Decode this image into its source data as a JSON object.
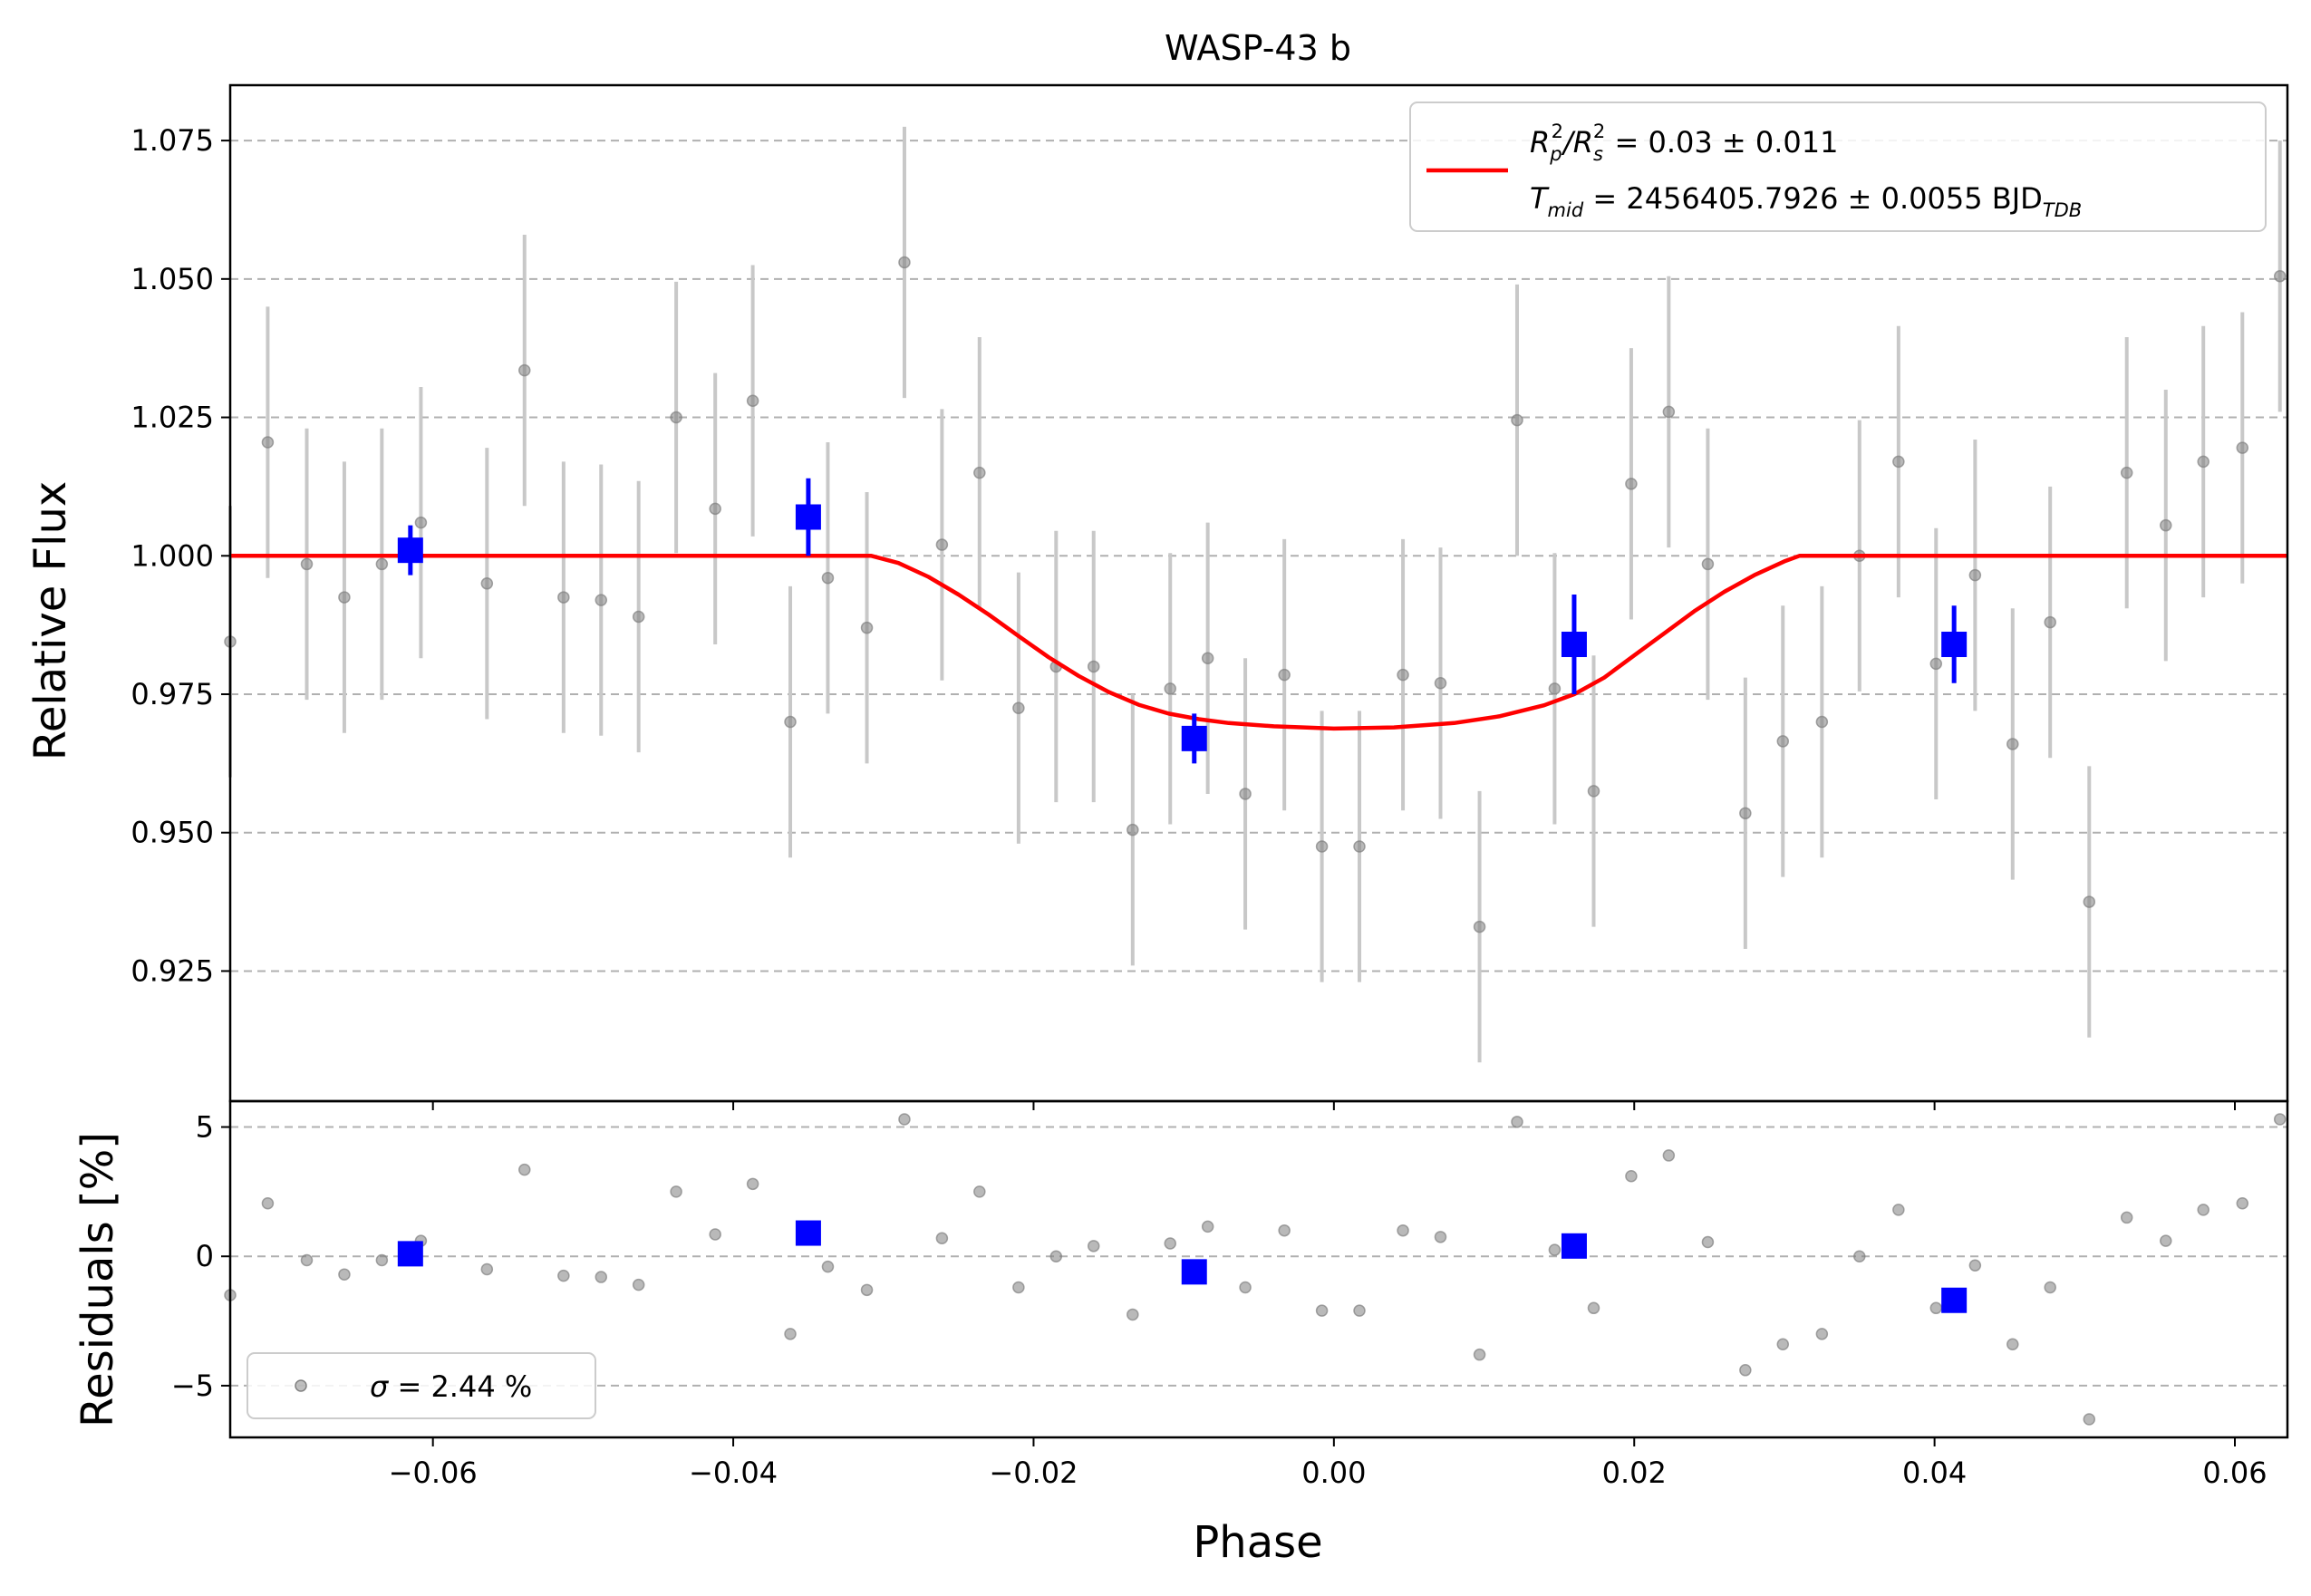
{
  "chart_data": [
    {
      "panel": "main",
      "type": "scatter",
      "title": "WASP-43 b",
      "xlabel": "",
      "ylabel": "Relative Flux",
      "xlim": [
        -0.0735,
        0.0635
      ],
      "ylim": [
        0.9015,
        1.085
      ],
      "x_ticks": [
        -0.06,
        -0.04,
        -0.02,
        0.0,
        0.02,
        0.04,
        0.06
      ],
      "x_tick_labels": [
        "−0.06",
        "−0.04",
        "−0.02",
        "0.00",
        "0.02",
        "0.04",
        "0.06"
      ],
      "y_ticks": [
        0.925,
        0.95,
        0.975,
        1.0,
        1.025,
        1.05,
        1.075
      ],
      "y_tick_labels": [
        "0.925",
        "0.950",
        "0.975",
        "1.000",
        "1.025",
        "1.050",
        "1.075"
      ],
      "grid": "horizontal dashed",
      "legend_position": "top-right",
      "colors": {
        "data": "#808080",
        "error": "#c8c8c8",
        "binned": "#0000ff",
        "model": "#ff0000"
      },
      "legend": {
        "line1": {
          "main": "R",
          "sub1": "p",
          "sup1": "2",
          "slash": "/R",
          "sub2": "s",
          "sup2": "2",
          "rest": " = 0.03 ± 0.011"
        },
        "line2": {
          "main": "T",
          "sub": "mid",
          "rest": " = 2456405.7926 ± 0.0055 BJD",
          "tail": "TDB"
        }
      },
      "series": [
        {
          "role": "data",
          "points": [
            {
              "x": -0.0735,
              "y": 0.9845,
              "err": 0.0245
            },
            {
              "x": -0.071,
              "y": 1.0205,
              "err": 0.0245
            },
            {
              "x": -0.0684,
              "y": 0.9985,
              "err": 0.0245
            },
            {
              "x": -0.0659,
              "y": 0.9925,
              "err": 0.0245
            },
            {
              "x": -0.0634,
              "y": 0.9985,
              "err": 0.0245
            },
            {
              "x": -0.0608,
              "y": 1.006,
              "err": 0.0245
            },
            {
              "x": -0.0564,
              "y": 0.995,
              "err": 0.0245
            },
            {
              "x": -0.0539,
              "y": 1.0335,
              "err": 0.0245
            },
            {
              "x": -0.0513,
              "y": 0.9925,
              "err": 0.0245
            },
            {
              "x": -0.0488,
              "y": 0.992,
              "err": 0.0245
            },
            {
              "x": -0.0463,
              "y": 0.989,
              "err": 0.0245
            },
            {
              "x": -0.0438,
              "y": 1.025,
              "err": 0.0245
            },
            {
              "x": -0.0412,
              "y": 1.0085,
              "err": 0.0245
            },
            {
              "x": -0.0387,
              "y": 1.028,
              "err": 0.0245
            },
            {
              "x": -0.0362,
              "y": 0.97,
              "err": 0.0245
            },
            {
              "x": -0.0337,
              "y": 0.996,
              "err": 0.0245
            },
            {
              "x": -0.0311,
              "y": 0.987,
              "err": 0.0245
            },
            {
              "x": -0.0286,
              "y": 1.053,
              "err": 0.0245
            },
            {
              "x": -0.0261,
              "y": 1.002,
              "err": 0.0245
            },
            {
              "x": -0.0236,
              "y": 1.015,
              "err": 0.0245
            },
            {
              "x": -0.021,
              "y": 0.9725,
              "err": 0.0245
            },
            {
              "x": -0.0185,
              "y": 0.98,
              "err": 0.0245
            },
            {
              "x": -0.016,
              "y": 0.98,
              "err": 0.0245
            },
            {
              "x": -0.0134,
              "y": 0.9505,
              "err": 0.0245
            },
            {
              "x": -0.0109,
              "y": 0.976,
              "err": 0.0245
            },
            {
              "x": -0.0084,
              "y": 0.9815,
              "err": 0.0245
            },
            {
              "x": -0.0059,
              "y": 0.957,
              "err": 0.0245
            },
            {
              "x": -0.0033,
              "y": 0.9785,
              "err": 0.0245
            },
            {
              "x": -0.0008,
              "y": 0.9475,
              "err": 0.0245
            },
            {
              "x": 0.0017,
              "y": 0.9475,
              "err": 0.0245
            },
            {
              "x": 0.0046,
              "y": 0.9785,
              "err": 0.0245
            },
            {
              "x": 0.0071,
              "y": 0.977,
              "err": 0.0245
            },
            {
              "x": 0.0097,
              "y": 0.933,
              "err": 0.0245
            },
            {
              "x": 0.0122,
              "y": 1.0245,
              "err": 0.0245
            },
            {
              "x": 0.0147,
              "y": 0.976,
              "err": 0.0245
            },
            {
              "x": 0.0173,
              "y": 0.9575,
              "err": 0.0245
            },
            {
              "x": 0.0198,
              "y": 1.013,
              "err": 0.0245
            },
            {
              "x": 0.0223,
              "y": 1.026,
              "err": 0.0245
            },
            {
              "x": 0.0249,
              "y": 0.9985,
              "err": 0.0245
            },
            {
              "x": 0.0274,
              "y": 0.9535,
              "err": 0.0245
            },
            {
              "x": 0.0299,
              "y": 0.9665,
              "err": 0.0245
            },
            {
              "x": 0.0325,
              "y": 0.97,
              "err": 0.0245
            },
            {
              "x": 0.035,
              "y": 1.0,
              "err": 0.0245
            },
            {
              "x": 0.0376,
              "y": 1.017,
              "err": 0.0245
            },
            {
              "x": 0.0401,
              "y": 0.9805,
              "err": 0.0245
            },
            {
              "x": 0.0427,
              "y": 0.9965,
              "err": 0.0245
            },
            {
              "x": 0.0452,
              "y": 0.966,
              "err": 0.0245
            },
            {
              "x": 0.0477,
              "y": 0.988,
              "err": 0.0245
            },
            {
              "x": 0.0503,
              "y": 0.9375,
              "err": 0.0245
            },
            {
              "x": 0.0528,
              "y": 1.015,
              "err": 0.0245
            },
            {
              "x": 0.0554,
              "y": 1.0055,
              "err": 0.0245
            },
            {
              "x": 0.0579,
              "y": 1.017,
              "err": 0.0245
            },
            {
              "x": 0.0605,
              "y": 1.0195,
              "err": 0.0245
            },
            {
              "x": 0.063,
              "y": 1.0505,
              "err": 0.0245
            }
          ]
        },
        {
          "role": "binned",
          "points": [
            {
              "x": -0.0615,
              "y": 1.001,
              "err": 0.0045
            },
            {
              "x": -0.035,
              "y": 1.007,
              "err": 0.007
            },
            {
              "x": -0.0093,
              "y": 0.967,
              "err": 0.0045
            },
            {
              "x": 0.016,
              "y": 0.984,
              "err": 0.009
            },
            {
              "x": 0.0413,
              "y": 0.984,
              "err": 0.007
            }
          ]
        },
        {
          "role": "model",
          "points": [
            {
              "x": -0.0735,
              "y": 1.0
            },
            {
              "x": -0.0308,
              "y": 1.0
            },
            {
              "x": -0.029,
              "y": 0.9987
            },
            {
              "x": -0.027,
              "y": 0.9962
            },
            {
              "x": -0.025,
              "y": 0.993
            },
            {
              "x": -0.023,
              "y": 0.9894
            },
            {
              "x": -0.021,
              "y": 0.9855
            },
            {
              "x": -0.019,
              "y": 0.9817
            },
            {
              "x": -0.017,
              "y": 0.9783
            },
            {
              "x": -0.015,
              "y": 0.9754
            },
            {
              "x": -0.013,
              "y": 0.9731
            },
            {
              "x": -0.011,
              "y": 0.9715
            },
            {
              "x": -0.009,
              "y": 0.9705
            },
            {
              "x": -0.007,
              "y": 0.9698
            },
            {
              "x": -0.004,
              "y": 0.9692
            },
            {
              "x": 0.0,
              "y": 0.9688
            },
            {
              "x": 0.004,
              "y": 0.969
            },
            {
              "x": 0.008,
              "y": 0.9698
            },
            {
              "x": 0.011,
              "y": 0.971
            },
            {
              "x": 0.014,
              "y": 0.973
            },
            {
              "x": 0.016,
              "y": 0.975
            },
            {
              "x": 0.018,
              "y": 0.978
            },
            {
              "x": 0.02,
              "y": 0.982
            },
            {
              "x": 0.022,
              "y": 0.986
            },
            {
              "x": 0.024,
              "y": 0.99
            },
            {
              "x": 0.026,
              "y": 0.9935
            },
            {
              "x": 0.028,
              "y": 0.9965
            },
            {
              "x": 0.03,
              "y": 0.999
            },
            {
              "x": 0.031,
              "y": 1.0
            },
            {
              "x": 0.0635,
              "y": 1.0
            }
          ]
        }
      ]
    },
    {
      "panel": "residuals",
      "type": "scatter",
      "xlabel": "Phase",
      "ylabel": "Residuals [%]",
      "xlim": [
        -0.0735,
        0.0635
      ],
      "ylim": [
        -7.0,
        6.0
      ],
      "x_ticks": [
        -0.06,
        -0.04,
        -0.02,
        0.0,
        0.02,
        0.04,
        0.06
      ],
      "x_tick_labels": [
        "−0.06",
        "−0.04",
        "−0.02",
        "0.00",
        "0.02",
        "0.04",
        "0.06"
      ],
      "y_ticks": [
        -5,
        0,
        5
      ],
      "y_tick_labels": [
        "−5",
        "0",
        "5"
      ],
      "grid": "horizontal dashed",
      "legend_position": "bottom-left",
      "legend": {
        "sigma": "σ",
        "rest": " = 2.44 %"
      },
      "series": [
        {
          "role": "data",
          "points": [
            {
              "x": -0.0735,
              "y": -1.5
            },
            {
              "x": -0.071,
              "y": 2.05
            },
            {
              "x": -0.0684,
              "y": -0.15
            },
            {
              "x": -0.0659,
              "y": -0.7
            },
            {
              "x": -0.0634,
              "y": -0.15
            },
            {
              "x": -0.0608,
              "y": 0.6
            },
            {
              "x": -0.0564,
              "y": -0.5
            },
            {
              "x": -0.0539,
              "y": 3.35
            },
            {
              "x": -0.0513,
              "y": -0.75
            },
            {
              "x": -0.0488,
              "y": -0.8
            },
            {
              "x": -0.0463,
              "y": -1.1
            },
            {
              "x": -0.0438,
              "y": 2.5
            },
            {
              "x": -0.0412,
              "y": 0.85
            },
            {
              "x": -0.0387,
              "y": 2.8
            },
            {
              "x": -0.0362,
              "y": -3.0
            },
            {
              "x": -0.0337,
              "y": -0.4
            },
            {
              "x": -0.0311,
              "y": -1.3
            },
            {
              "x": -0.0286,
              "y": 5.3
            },
            {
              "x": -0.0261,
              "y": 0.7
            },
            {
              "x": -0.0236,
              "y": 2.5
            },
            {
              "x": -0.021,
              "y": -1.2
            },
            {
              "x": -0.0185,
              "y": 0.0
            },
            {
              "x": -0.016,
              "y": 0.4
            },
            {
              "x": -0.0134,
              "y": -2.25
            },
            {
              "x": -0.0109,
              "y": 0.5
            },
            {
              "x": -0.0084,
              "y": 1.15
            },
            {
              "x": -0.0059,
              "y": -1.2
            },
            {
              "x": -0.0033,
              "y": 1.0
            },
            {
              "x": -0.0008,
              "y": -2.1
            },
            {
              "x": 0.0017,
              "y": -2.1
            },
            {
              "x": 0.0046,
              "y": 1.0
            },
            {
              "x": 0.0071,
              "y": 0.75
            },
            {
              "x": 0.0097,
              "y": -3.8
            },
            {
              "x": 0.0122,
              "y": 5.2
            },
            {
              "x": 0.0147,
              "y": 0.25
            },
            {
              "x": 0.0173,
              "y": -2.0
            },
            {
              "x": 0.0198,
              "y": 3.1
            },
            {
              "x": 0.0223,
              "y": 3.9
            },
            {
              "x": 0.0249,
              "y": 0.55
            },
            {
              "x": 0.0274,
              "y": -4.4
            },
            {
              "x": 0.0299,
              "y": -3.4
            },
            {
              "x": 0.0325,
              "y": -3.0
            },
            {
              "x": 0.035,
              "y": 0.0
            },
            {
              "x": 0.0376,
              "y": 1.8
            },
            {
              "x": 0.0401,
              "y": -2.0
            },
            {
              "x": 0.0427,
              "y": -0.35
            },
            {
              "x": 0.0452,
              "y": -3.4
            },
            {
              "x": 0.0477,
              "y": -1.2
            },
            {
              "x": 0.0503,
              "y": -6.3
            },
            {
              "x": 0.0528,
              "y": 1.5
            },
            {
              "x": 0.0554,
              "y": 0.6
            },
            {
              "x": 0.0579,
              "y": 1.8
            },
            {
              "x": 0.0605,
              "y": 2.05
            },
            {
              "x": 0.063,
              "y": 5.3
            }
          ]
        },
        {
          "role": "binned",
          "points": [
            {
              "x": -0.0615,
              "y": 0.1
            },
            {
              "x": -0.035,
              "y": 0.9
            },
            {
              "x": -0.0093,
              "y": -0.6
            },
            {
              "x": 0.016,
              "y": 0.4
            },
            {
              "x": 0.0413,
              "y": -1.7
            }
          ]
        }
      ]
    }
  ]
}
